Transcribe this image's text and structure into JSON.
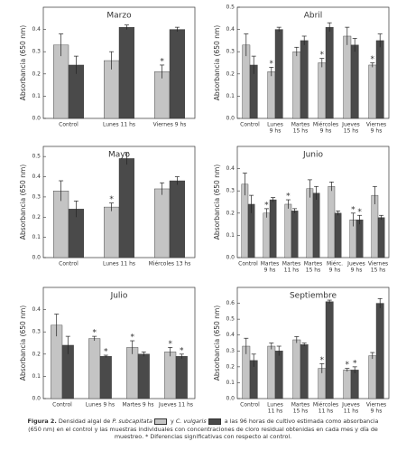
{
  "chart_data": [
    {
      "type": "bar",
      "title": "Marzo",
      "ylabel": "Absorbancia (650 nm)",
      "categories": [
        [
          "Control"
        ],
        [
          "Lunes 11 hs"
        ],
        [
          "Viernes 9 hs"
        ]
      ],
      "series": [
        {
          "name": "P. subcapitata",
          "color": "#c4c4c4",
          "values": [
            0.33,
            0.26,
            0.21
          ],
          "errors": [
            0.05,
            0.04,
            0.03
          ],
          "significance": [
            null,
            null,
            "*"
          ]
        },
        {
          "name": "C. vulgaris",
          "color": "#4a4a4a",
          "values": [
            0.24,
            0.41,
            0.4
          ],
          "errors": [
            0.04,
            0.01,
            0.01
          ],
          "significance": [
            null,
            null,
            null
          ]
        }
      ],
      "ylim": [
        0,
        0.5
      ],
      "yticks": [
        {
          "value": 0,
          "label": "0.0"
        },
        0.1,
        0.2,
        0.3,
        0.4
      ]
    },
    {
      "type": "bar",
      "title": "Abril",
      "ylabel": "Absorbancia (650 nm)",
      "categories": [
        [
          "Control"
        ],
        [
          "Lunes",
          "9 hs"
        ],
        [
          "Martes",
          "15 hs"
        ],
        [
          "Miércoles",
          "9 hs"
        ],
        [
          "Jueves",
          "15 hs"
        ],
        [
          "Viernes",
          "9 hs"
        ]
      ],
      "series": [
        {
          "name": "P. subcapitata",
          "color": "#c4c4c4",
          "values": [
            0.33,
            0.21,
            0.3,
            0.25,
            0.37,
            0.24
          ],
          "errors": [
            0.05,
            0.02,
            0.02,
            0.02,
            0.04,
            0.01
          ],
          "significance": [
            null,
            "*",
            null,
            "*",
            null,
            "*"
          ]
        },
        {
          "name": "C. vulgaris",
          "color": "#4a4a4a",
          "values": [
            0.24,
            0.4,
            0.35,
            0.41,
            0.33,
            0.35
          ],
          "errors": [
            0.04,
            0.01,
            0.02,
            0.02,
            0.03,
            0.03
          ],
          "significance": [
            null,
            null,
            null,
            null,
            null,
            null
          ]
        }
      ],
      "ylim": [
        0,
        0.5
      ],
      "yticks": [
        {
          "value": 0,
          "label": "0.0"
        },
        0.1,
        0.2,
        0.3,
        0.4,
        0.5
      ]
    },
    {
      "type": "bar",
      "title": "Mayo",
      "ylabel": "Absorbancia (650 nm)",
      "categories": [
        [
          "Control"
        ],
        [
          "Lunes 11 hs"
        ],
        [
          "Miércoles 13 hs"
        ]
      ],
      "series": [
        {
          "name": "P. subcapitata",
          "color": "#c4c4c4",
          "values": [
            0.33,
            0.25,
            0.34
          ],
          "errors": [
            0.05,
            0.02,
            0.03
          ],
          "significance": [
            null,
            "*",
            null
          ]
        },
        {
          "name": "C. vulgaris",
          "color": "#4a4a4a",
          "values": [
            0.24,
            0.49,
            0.38
          ],
          "errors": [
            0.04,
            0.03,
            0.02
          ],
          "significance": [
            null,
            null,
            null
          ]
        }
      ],
      "ylim": [
        0,
        0.55
      ],
      "yticks": [
        {
          "value": 0,
          "label": "0.0"
        },
        0.1,
        0.2,
        0.3,
        0.4,
        0.5
      ]
    },
    {
      "type": "bar",
      "title": "Junio",
      "ylabel": "Absorbancia (650 nm)",
      "categories": [
        [
          "Control"
        ],
        [
          "Martes",
          "9 hs"
        ],
        [
          "Martes",
          "11 hs"
        ],
        [
          "Martes",
          "15 hs"
        ],
        [
          "Miérc.",
          "9 hs"
        ],
        [
          "Jueves",
          "9 hs"
        ],
        [
          "Viernes",
          "15 hs"
        ]
      ],
      "series": [
        {
          "name": "P. subcapitata",
          "color": "#c4c4c4",
          "values": [
            0.33,
            0.2,
            0.24,
            0.31,
            0.32,
            0.17,
            0.28
          ],
          "errors": [
            0.05,
            0.02,
            0.02,
            0.04,
            0.02,
            0.03,
            0.04
          ],
          "significance": [
            null,
            "*",
            "*",
            null,
            null,
            "*",
            null
          ]
        },
        {
          "name": "C. vulgaris",
          "color": "#4a4a4a",
          "values": [
            0.24,
            0.26,
            0.21,
            0.29,
            0.2,
            0.17,
            0.18
          ],
          "errors": [
            0.04,
            0.01,
            0.01,
            0.03,
            0.01,
            0.02,
            0.01
          ],
          "significance": [
            null,
            null,
            null,
            null,
            null,
            "*",
            null
          ]
        }
      ],
      "ylim": [
        0,
        0.5
      ],
      "yticks": [
        {
          "value": 0,
          "label": "0.0"
        },
        0.1,
        0.2,
        0.3,
        0.4
      ]
    },
    {
      "type": "bar",
      "title": "Julio",
      "ylabel": "Absorbancia (650 nm)",
      "categories": [
        [
          "Control"
        ],
        [
          "Lunes 9 hs"
        ],
        [
          "Martes 9 hs"
        ],
        [
          "Jueves 11 hs"
        ]
      ],
      "series": [
        {
          "name": "P. subcapitata",
          "color": "#c4c4c4",
          "values": [
            0.33,
            0.27,
            0.23,
            0.21
          ],
          "errors": [
            0.05,
            0.01,
            0.03,
            0.02
          ],
          "significance": [
            null,
            "*",
            "*",
            "*"
          ]
        },
        {
          "name": "C. vulgaris",
          "color": "#4a4a4a",
          "values": [
            0.24,
            0.19,
            0.2,
            0.19
          ],
          "errors": [
            0.04,
            0.005,
            0.01,
            0.01
          ],
          "significance": [
            null,
            "*",
            null,
            "*"
          ]
        }
      ],
      "ylim": [
        0,
        0.5
      ],
      "yticks": [
        {
          "value": 0,
          "label": "0.0"
        },
        0.1,
        0.2,
        0.3,
        0.4
      ]
    },
    {
      "type": "bar",
      "title": "Septiembre",
      "ylabel": "Absorbancia (650 nm)",
      "categories": [
        [
          "Control"
        ],
        [
          "Lunes",
          "11 hs"
        ],
        [
          "Martes",
          "15 hs"
        ],
        [
          "Miércoles",
          "11 hs"
        ],
        [
          "Jueves",
          "11 hs"
        ],
        [
          "Viernes",
          "9 hs"
        ]
      ],
      "series": [
        {
          "name": "P. subcapitata",
          "color": "#c4c4c4",
          "values": [
            0.33,
            0.33,
            0.37,
            0.19,
            0.18,
            0.27
          ],
          "errors": [
            0.05,
            0.02,
            0.02,
            0.03,
            0.01,
            0.02
          ],
          "significance": [
            null,
            null,
            null,
            "*",
            "*",
            null
          ]
        },
        {
          "name": "C. vulgaris",
          "color": "#4a4a4a",
          "values": [
            0.24,
            0.3,
            0.34,
            0.61,
            0.18,
            0.6
          ],
          "errors": [
            0.04,
            0.03,
            0.01,
            0.01,
            0.02,
            0.03
          ],
          "significance": [
            null,
            null,
            null,
            null,
            "*",
            null
          ]
        }
      ],
      "ylim": [
        0,
        0.7
      ],
      "yticks": [
        {
          "value": 0,
          "label": "0.0"
        },
        0.1,
        0.2,
        0.3,
        0.4,
        0.5,
        0.6
      ]
    }
  ],
  "caption": {
    "label": "Figura 2.",
    "part1": " Densidad algal de ",
    "part2": " y ",
    "part3": " a las 96 horas de cultivo estimada como absorbancia (650 nm) en el control y las muestras individuales con concentraciones de cloro residual obtenidas en cada mes y día de muestreo. * Diferencias significativas con respecto al control."
  }
}
